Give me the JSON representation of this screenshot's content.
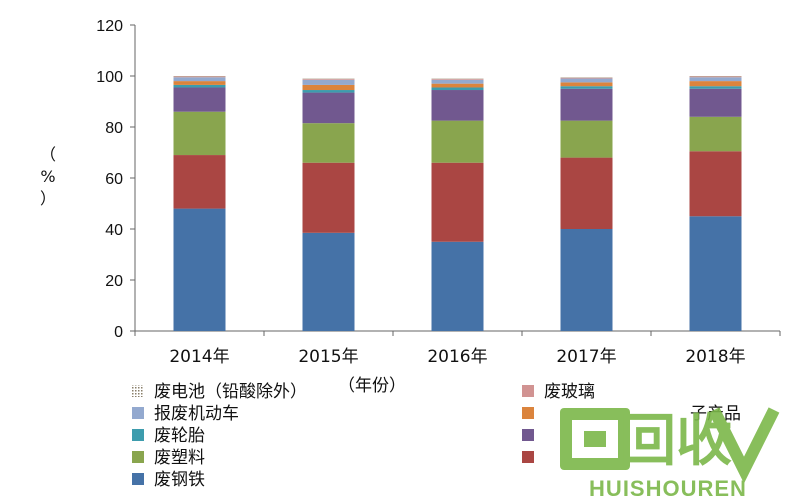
{
  "chart_data": {
    "type": "bar",
    "stacked": true,
    "categories": [
      "2014年",
      "2015年",
      "2016年",
      "2017年",
      "2018年"
    ],
    "xlabel": "（年份）",
    "ylabel_chars": [
      "（",
      "%",
      "）"
    ],
    "ylim": [
      0,
      120
    ],
    "yticks": [
      0,
      20,
      40,
      60,
      80,
      100,
      120
    ],
    "legend_position": "bottom",
    "series": [
      {
        "name": "废钢铁",
        "color": "#4572a7",
        "values": [
          48,
          38.5,
          35,
          40,
          45
        ]
      },
      {
        "name": "",
        "color": "#aa4643",
        "values": [
          21,
          27.5,
          31,
          28,
          25.5
        ]
      },
      {
        "name": "废塑料",
        "color": "#89a54e",
        "values": [
          17,
          15.5,
          16.5,
          14.5,
          13.5
        ]
      },
      {
        "name": "",
        "color": "#71588f",
        "values": [
          9.5,
          12,
          12,
          12.5,
          11
        ]
      },
      {
        "name": "废轮胎",
        "color": "#3d9cad",
        "values": [
          1,
          1,
          1,
          1,
          1
        ]
      },
      {
        "name": "子产品",
        "color": "#db843d",
        "values": [
          1.5,
          2,
          1.5,
          1.5,
          2
        ]
      },
      {
        "name": "报废机动车",
        "color": "#93a9cf",
        "values": [
          1.5,
          2,
          1.5,
          1.5,
          1.5
        ]
      },
      {
        "name": "废玻璃",
        "color": "#d19392",
        "values": [
          0.3,
          0.3,
          0.3,
          0.3,
          0.3
        ]
      },
      {
        "name": "废电池（铅酸除外）",
        "color": "#b9ac99",
        "values": [
          0.2,
          0.2,
          0.2,
          0.2,
          0.2
        ]
      }
    ],
    "legend_order": [
      8,
      7,
      6,
      5,
      4,
      3,
      2,
      1,
      0
    ]
  },
  "watermark": {
    "logo_text": "回收",
    "brand": "HUISHOUREN"
  }
}
